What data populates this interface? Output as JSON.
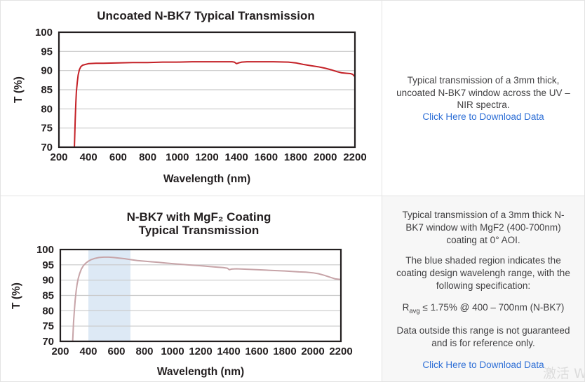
{
  "colors": {
    "axis": "#231f20",
    "grid": "#c9c9c9",
    "uncoated_line": "#c42127",
    "coated_line": "#c7a4a8",
    "band_fill": "#dde9f5",
    "link": "#2e6fd6",
    "body_text": "#414042",
    "panel_bg": "#f7f7f7",
    "border": "#e3e3e3",
    "watermark": "#dcdcdc"
  },
  "watermark": "激活 W",
  "panels": {
    "top_text": {
      "description": "Typical transmission of a 3mm thick, uncoated N-BK7 window across the UV – NIR spectra.",
      "link_label": "Click Here to Download Data"
    },
    "bottom_text": {
      "para1": "Typical transmission of a 3mm thick N-BK7 window with MgF2 (400-700nm) coating at 0° AOI.",
      "para2": "The blue shaded region indicates the coating design wavelengh range, with the following specification:",
      "spec": {
        "prefix": "R",
        "sub": "avg",
        "rest": " ≤ 1.75% @ 400 – 700nm (N-BK7)"
      },
      "para3": "Data outside this range is not guaranteed and is for reference only.",
      "link_label": "Click Here to Download Data"
    }
  },
  "chart_data": [
    {
      "type": "line",
      "title_lines": [
        "Uncoated N-BK7 Typical Transmission"
      ],
      "xlabel": "Wavelength (nm)",
      "ylabel": "T (%)",
      "x_range": [
        200,
        2200
      ],
      "y_range": [
        70,
        100
      ],
      "x_ticks": [
        200,
        400,
        600,
        800,
        1000,
        1200,
        1400,
        1600,
        1800,
        2000,
        2200
      ],
      "y_ticks": [
        70,
        75,
        80,
        85,
        90,
        95,
        100
      ],
      "grid": true,
      "legend": "none",
      "series": [
        {
          "name": "Uncoated N-BK7 transmission",
          "color": "#c42127",
          "points": [
            [
              303,
              68.0
            ],
            [
              306,
              72.0
            ],
            [
              310,
              77.0
            ],
            [
              314,
              81.5
            ],
            [
              318,
              84.5
            ],
            [
              324,
              87.0
            ],
            [
              330,
              88.8
            ],
            [
              338,
              90.2
            ],
            [
              348,
              91.0
            ],
            [
              360,
              91.4
            ],
            [
              380,
              91.6
            ],
            [
              400,
              91.8
            ],
            [
              450,
              91.9
            ],
            [
              500,
              91.9
            ],
            [
              600,
              92.0
            ],
            [
              700,
              92.1
            ],
            [
              800,
              92.1
            ],
            [
              900,
              92.2
            ],
            [
              1000,
              92.2
            ],
            [
              1100,
              92.3
            ],
            [
              1200,
              92.3
            ],
            [
              1300,
              92.3
            ],
            [
              1370,
              92.3
            ],
            [
              1385,
              92.2
            ],
            [
              1400,
              91.8
            ],
            [
              1415,
              92.0
            ],
            [
              1435,
              92.2
            ],
            [
              1470,
              92.3
            ],
            [
              1550,
              92.3
            ],
            [
              1650,
              92.3
            ],
            [
              1750,
              92.2
            ],
            [
              1800,
              92.0
            ],
            [
              1850,
              91.6
            ],
            [
              1900,
              91.3
            ],
            [
              1950,
              91.0
            ],
            [
              2000,
              90.6
            ],
            [
              2040,
              90.2
            ],
            [
              2080,
              89.7
            ],
            [
              2110,
              89.4
            ],
            [
              2140,
              89.3
            ],
            [
              2170,
              89.2
            ],
            [
              2185,
              89.0
            ],
            [
              2200,
              88.4
            ]
          ]
        }
      ]
    },
    {
      "type": "line",
      "title_lines": [
        "N-BK7 with MgF₂ Coating",
        "Typical Transmission"
      ],
      "xlabel": "Wavelength (nm)",
      "ylabel": "T (%)",
      "x_range": [
        200,
        2200
      ],
      "y_range": [
        70,
        100
      ],
      "x_ticks": [
        200,
        400,
        600,
        800,
        1000,
        1200,
        1400,
        1600,
        1800,
        2000,
        2200
      ],
      "y_ticks": [
        70,
        75,
        80,
        85,
        90,
        95,
        100
      ],
      "grid": true,
      "legend": "none",
      "band": {
        "x_from": 400,
        "x_to": 700,
        "color": "#dde9f5",
        "label": "coating design wavelength range"
      },
      "series": [
        {
          "name": "N-BK7 with MgF2 coating transmission",
          "color": "#c7a4a8",
          "points": [
            [
              286,
              68.0
            ],
            [
              290,
              72.0
            ],
            [
              294,
              76.0
            ],
            [
              300,
              80.0
            ],
            [
              306,
              83.5
            ],
            [
              313,
              86.5
            ],
            [
              320,
              88.8
            ],
            [
              328,
              90.6
            ],
            [
              338,
              92.2
            ],
            [
              350,
              93.6
            ],
            [
              364,
              94.7
            ],
            [
              380,
              95.5
            ],
            [
              400,
              96.2
            ],
            [
              420,
              96.7
            ],
            [
              445,
              97.1
            ],
            [
              475,
              97.4
            ],
            [
              510,
              97.5
            ],
            [
              545,
              97.5
            ],
            [
              580,
              97.4
            ],
            [
              620,
              97.2
            ],
            [
              660,
              97.0
            ],
            [
              700,
              96.7
            ],
            [
              750,
              96.4
            ],
            [
              800,
              96.2
            ],
            [
              850,
              96.0
            ],
            [
              900,
              95.8
            ],
            [
              950,
              95.6
            ],
            [
              1000,
              95.4
            ],
            [
              1100,
              95.0
            ],
            [
              1200,
              94.7
            ],
            [
              1300,
              94.3
            ],
            [
              1360,
              94.1
            ],
            [
              1390,
              93.9
            ],
            [
              1405,
              93.4
            ],
            [
              1420,
              93.6
            ],
            [
              1455,
              93.7
            ],
            [
              1500,
              93.6
            ],
            [
              1600,
              93.4
            ],
            [
              1700,
              93.2
            ],
            [
              1800,
              93.0
            ],
            [
              1900,
              92.7
            ],
            [
              1950,
              92.6
            ],
            [
              2000,
              92.4
            ],
            [
              2040,
              92.1
            ],
            [
              2080,
              91.6
            ],
            [
              2120,
              91.0
            ],
            [
              2160,
              90.4
            ],
            [
              2200,
              90.2
            ]
          ]
        }
      ]
    }
  ]
}
